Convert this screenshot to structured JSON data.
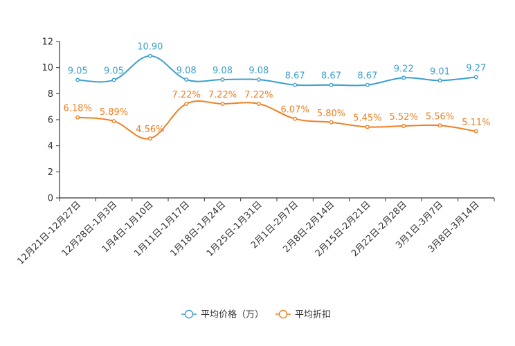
{
  "chart_data": {
    "type": "line",
    "title": "",
    "xlabel": "",
    "ylabel": "",
    "ylim": [
      0,
      12
    ],
    "yticks": [
      "0",
      "2",
      "4",
      "6",
      "8",
      "10",
      "12"
    ],
    "grid": false,
    "legend_position": "bottom-center",
    "categories": [
      "12月21日-12月27日",
      "12月28日-1月3日",
      "1月4日-1月10日",
      "1月11日-1月17日",
      "1月18日-1月24日",
      "1月25日-1月31日",
      "2月1日-2月7日",
      "2月8日-2月14日",
      "2月15日-2月21日",
      "2月22日-2月28日",
      "3月1日-3月7日",
      "3月8日-3月14日"
    ],
    "series": [
      {
        "name": "平均价格（万）",
        "color": "#3a9fcf",
        "values": [
          9.05,
          9.05,
          10.9,
          9.08,
          9.08,
          9.08,
          8.67,
          8.67,
          8.67,
          9.22,
          9.01,
          9.27
        ],
        "labels": [
          "9.05",
          "9.05",
          "10.90",
          "9.08",
          "9.08",
          "9.08",
          "8.67",
          "8.67",
          "8.67",
          "9.22",
          "9.01",
          "9.27"
        ]
      },
      {
        "name": "平均折扣",
        "color": "#f07f22",
        "values": [
          6.18,
          5.89,
          4.56,
          7.22,
          7.22,
          7.22,
          6.07,
          5.8,
          5.45,
          5.52,
          5.56,
          5.11
        ],
        "labels": [
          "6.18%",
          "5.89%",
          "4.56%",
          "7.22%",
          "7.22%",
          "7.22%",
          "6.07%",
          "5.80%",
          "5.45%",
          "5.52%",
          "5.56%",
          "5.11%"
        ]
      }
    ]
  }
}
